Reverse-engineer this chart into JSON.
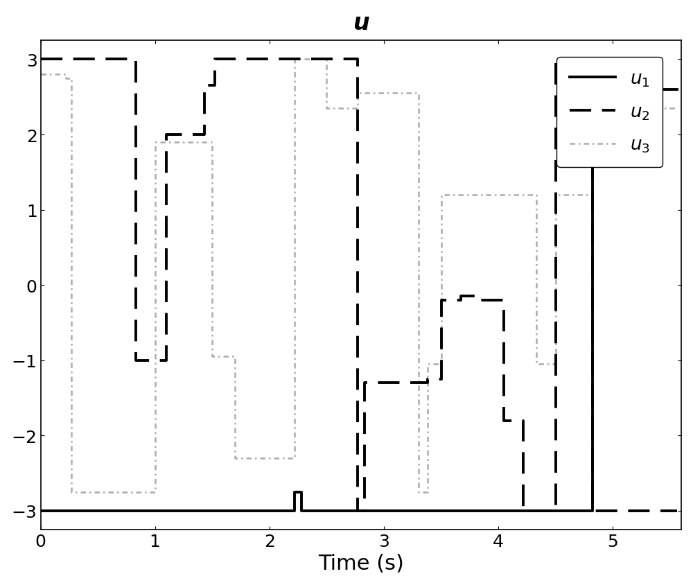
{
  "title": "$\\boldsymbol{u}$",
  "xlabel": "Time (s)",
  "xlim": [
    0,
    5.6
  ],
  "ylim": [
    -3.25,
    3.25
  ],
  "yticks": [
    -3,
    -2,
    -1,
    0,
    1,
    2,
    3
  ],
  "xticks": [
    0,
    1,
    2,
    3,
    4,
    5
  ],
  "u1_x": [
    0.0,
    2.22,
    2.22,
    2.28,
    2.28,
    2.77,
    2.77,
    4.82,
    4.82,
    5.56
  ],
  "u1_y": [
    -3.0,
    -3.0,
    -2.75,
    -2.75,
    -3.0,
    -3.0,
    -3.0,
    -3.0,
    2.6,
    2.6
  ],
  "u2_x": [
    0.0,
    0.83,
    0.83,
    1.1,
    1.1,
    1.43,
    1.43,
    1.52,
    1.52,
    2.77,
    2.77,
    2.83,
    2.83,
    3.38,
    3.38,
    3.5,
    3.5,
    3.67,
    3.67,
    3.85,
    3.85,
    4.05,
    4.05,
    4.22,
    4.22,
    4.5,
    4.5,
    4.82,
    4.82,
    5.04,
    5.04,
    5.56
  ],
  "u2_y": [
    3.0,
    3.0,
    -1.0,
    -1.0,
    2.0,
    2.0,
    2.65,
    2.65,
    3.0,
    3.0,
    -3.0,
    -3.0,
    -1.3,
    -1.3,
    -1.25,
    -1.25,
    -0.2,
    -0.2,
    -0.15,
    -0.15,
    -0.2,
    -0.2,
    -1.8,
    -1.8,
    -3.0,
    -3.0,
    3.0,
    3.0,
    -3.0,
    -3.0,
    -3.0,
    -3.0
  ],
  "u3_x": [
    0.0,
    0.22,
    0.22,
    0.27,
    0.27,
    1.0,
    1.0,
    1.5,
    1.5,
    1.7,
    1.7,
    2.22,
    2.22,
    2.5,
    2.5,
    2.77,
    2.77,
    2.83,
    2.83,
    3.3,
    3.3,
    3.38,
    3.38,
    3.5,
    3.5,
    4.33,
    4.33,
    4.5,
    4.5,
    4.82,
    4.82,
    5.04,
    5.04,
    5.33,
    5.33,
    5.56
  ],
  "u3_y": [
    2.8,
    2.8,
    2.75,
    2.75,
    -2.75,
    -2.75,
    1.9,
    1.9,
    -0.95,
    -0.95,
    -2.3,
    -2.3,
    3.0,
    3.0,
    2.35,
    2.35,
    2.55,
    2.55,
    2.55,
    2.55,
    -2.75,
    -2.75,
    -1.05,
    -1.05,
    1.2,
    1.2,
    -1.05,
    -1.05,
    1.2,
    1.2,
    3.0,
    3.0,
    2.35,
    2.35,
    2.35,
    2.35
  ],
  "bg_color": "#ffffff",
  "u1_color": "#000000",
  "u2_color": "#000000",
  "u3_color": "#aaaaaa",
  "title_fontsize": 24,
  "label_fontsize": 22,
  "tick_fontsize": 18,
  "legend_fontsize": 19
}
